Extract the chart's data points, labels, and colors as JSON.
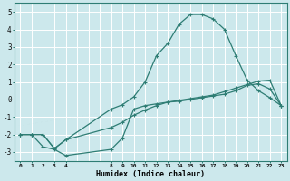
{
  "xlabel": "Humidex (Indice chaleur)",
  "bg_color": "#cce8ec",
  "grid_color": "#ffffff",
  "line_color": "#2e7d74",
  "ylim": [
    -3.5,
    5.5
  ],
  "yticks": [
    -3,
    -2,
    -1,
    0,
    1,
    2,
    3,
    4,
    5
  ],
  "xtick_labels": [
    "0",
    "1",
    "2",
    "3",
    "4",
    "",
    "",
    "",
    "8",
    "9",
    "10",
    "11",
    "12",
    "13",
    "14",
    "15",
    "16",
    "17",
    "18",
    "19",
    "20",
    "21",
    "22",
    "23"
  ],
  "xtick_display": [
    "0",
    "1",
    "2",
    "3",
    "4",
    "8",
    "9",
    "10",
    "11",
    "12",
    "13",
    "14",
    "15",
    "16",
    "17",
    "18",
    "19",
    "20",
    "21",
    "22",
    "23"
  ],
  "n_xpositions": 24,
  "curve1_xi": [
    0,
    1,
    2,
    3,
    4,
    8,
    9,
    10,
    11,
    12,
    13,
    14,
    15,
    16,
    17,
    18,
    19,
    20,
    21,
    22,
    23
  ],
  "curve1_y": [
    -2.0,
    -2.0,
    -2.0,
    -2.8,
    -2.3,
    -0.55,
    -0.3,
    0.15,
    1.0,
    2.5,
    3.2,
    4.3,
    4.85,
    4.85,
    4.6,
    4.0,
    2.5,
    1.1,
    0.5,
    0.1,
    -0.35
  ],
  "curve2_xi": [
    0,
    1,
    2,
    3,
    4,
    8,
    9,
    10,
    11,
    12,
    13,
    14,
    15,
    16,
    17,
    18,
    19,
    20,
    21,
    22,
    23
  ],
  "curve2_y": [
    -2.0,
    -2.0,
    -2.7,
    -2.85,
    -3.2,
    -2.85,
    -2.2,
    -0.55,
    -0.35,
    -0.25,
    -0.15,
    -0.1,
    0.0,
    0.1,
    0.2,
    0.3,
    0.5,
    0.8,
    0.9,
    0.6,
    -0.35
  ],
  "curve3_xi": [
    0,
    1,
    2,
    3,
    4,
    8,
    9,
    10,
    11,
    12,
    13,
    14,
    15,
    16,
    17,
    18,
    19,
    20,
    21,
    22,
    23
  ],
  "curve3_y": [
    -2.0,
    -2.0,
    -2.0,
    -2.8,
    -2.3,
    -1.6,
    -1.3,
    -0.9,
    -0.6,
    -0.35,
    -0.15,
    -0.05,
    0.05,
    0.15,
    0.25,
    0.45,
    0.65,
    0.85,
    1.05,
    1.1,
    -0.35
  ]
}
